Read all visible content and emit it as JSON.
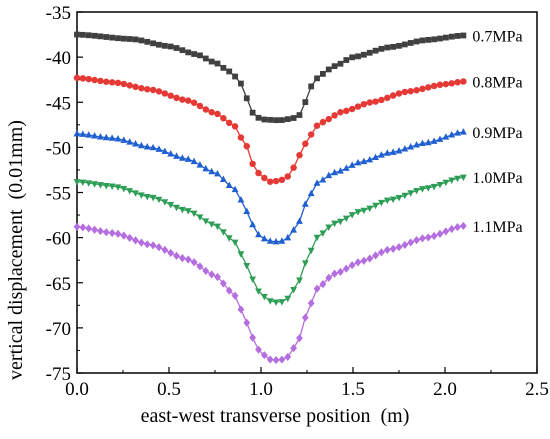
{
  "chart_data": {
    "type": "line",
    "title": "",
    "xlabel": "east-west transverse position  (m)",
    "ylabel": "vertical displacement  (0.01mm)",
    "xlim": [
      0,
      2.5
    ],
    "ylim": [
      -75,
      -35
    ],
    "xticks": [
      0,
      0.5,
      1,
      1.5,
      2,
      2.5
    ],
    "xtick_labels": [
      "0.0",
      "0.5",
      "1.0",
      "1.5",
      "2.0",
      "2.5"
    ],
    "yticks": [
      -35,
      -40,
      -45,
      -50,
      -55,
      -60,
      -65,
      -70,
      -75
    ],
    "ytick_labels": [
      "-35",
      "-40",
      "-45",
      "-50",
      "-55",
      "-60",
      "-65",
      "-70",
      "-75"
    ],
    "grid": false,
    "legend": "inline labels at right end of each curve",
    "x_range_of_series": [
      0,
      2.1
    ],
    "series": [
      {
        "name": "0.7MPa",
        "color": "#404040",
        "marker": "square",
        "keypoints": [
          [
            0,
            -37.5
          ],
          [
            0.3,
            -38.0
          ],
          [
            0.5,
            -38.8
          ],
          [
            0.65,
            -39.7
          ],
          [
            0.75,
            -40.6
          ],
          [
            0.83,
            -41.6
          ],
          [
            0.88,
            -42.5
          ],
          [
            0.92,
            -44.5
          ],
          [
            0.96,
            -46.3
          ],
          [
            1.0,
            -46.9
          ],
          [
            1.1,
            -47.0
          ],
          [
            1.2,
            -46.7
          ],
          [
            1.24,
            -45.0
          ],
          [
            1.28,
            -43.0
          ],
          [
            1.32,
            -42.0
          ],
          [
            1.4,
            -41.0
          ],
          [
            1.5,
            -40.0
          ],
          [
            1.7,
            -38.9
          ],
          [
            1.9,
            -38.1
          ],
          [
            2.1,
            -37.6
          ]
        ]
      },
      {
        "name": "0.8MPa",
        "color": "#e53935",
        "marker": "circle",
        "keypoints": [
          [
            0,
            -42.3
          ],
          [
            0.2,
            -42.8
          ],
          [
            0.4,
            -43.6
          ],
          [
            0.6,
            -44.8
          ],
          [
            0.75,
            -46.2
          ],
          [
            0.85,
            -47.5
          ],
          [
            0.92,
            -49.8
          ],
          [
            0.96,
            -52.0
          ],
          [
            1.0,
            -53.2
          ],
          [
            1.05,
            -53.8
          ],
          [
            1.1,
            -53.7
          ],
          [
            1.15,
            -53.2
          ],
          [
            1.18,
            -52.2
          ],
          [
            1.22,
            -50.5
          ],
          [
            1.26,
            -48.8
          ],
          [
            1.32,
            -47.3
          ],
          [
            1.45,
            -46.0
          ],
          [
            1.6,
            -45.0
          ],
          [
            1.8,
            -43.8
          ],
          [
            2.0,
            -43.0
          ],
          [
            2.1,
            -42.7
          ]
        ]
      },
      {
        "name": "0.9MPa",
        "color": "#1f5fd0",
        "marker": "triangle-up",
        "keypoints": [
          [
            0,
            -48.5
          ],
          [
            0.2,
            -49.0
          ],
          [
            0.4,
            -50.0
          ],
          [
            0.6,
            -51.3
          ],
          [
            0.75,
            -52.8
          ],
          [
            0.85,
            -54.5
          ],
          [
            0.9,
            -56.0
          ],
          [
            0.95,
            -58.5
          ],
          [
            1.0,
            -60.0
          ],
          [
            1.05,
            -60.4
          ],
          [
            1.1,
            -60.5
          ],
          [
            1.15,
            -60.0
          ],
          [
            1.2,
            -58.5
          ],
          [
            1.25,
            -56.0
          ],
          [
            1.3,
            -54.0
          ],
          [
            1.4,
            -52.8
          ],
          [
            1.55,
            -51.6
          ],
          [
            1.7,
            -50.6
          ],
          [
            1.9,
            -49.5
          ],
          [
            2.1,
            -48.3
          ]
        ]
      },
      {
        "name": "1.0MPa",
        "color": "#2e9e57",
        "marker": "triangle-down",
        "keypoints": [
          [
            0,
            -53.8
          ],
          [
            0.2,
            -54.3
          ],
          [
            0.4,
            -55.5
          ],
          [
            0.6,
            -57.0
          ],
          [
            0.75,
            -58.6
          ],
          [
            0.85,
            -60.3
          ],
          [
            0.9,
            -62.0
          ],
          [
            0.95,
            -64.5
          ],
          [
            1.0,
            -66.3
          ],
          [
            1.05,
            -67.0
          ],
          [
            1.1,
            -67.2
          ],
          [
            1.15,
            -66.7
          ],
          [
            1.2,
            -65.0
          ],
          [
            1.25,
            -62.5
          ],
          [
            1.3,
            -60.0
          ],
          [
            1.4,
            -58.4
          ],
          [
            1.55,
            -57.0
          ],
          [
            1.7,
            -55.8
          ],
          [
            1.9,
            -54.5
          ],
          [
            2.1,
            -53.3
          ]
        ]
      },
      {
        "name": "1.1MPa",
        "color": "#b56ee0",
        "marker": "diamond",
        "keypoints": [
          [
            0,
            -58.8
          ],
          [
            0.2,
            -59.5
          ],
          [
            0.4,
            -60.8
          ],
          [
            0.6,
            -62.4
          ],
          [
            0.75,
            -64.2
          ],
          [
            0.85,
            -66.2
          ],
          [
            0.9,
            -68.2
          ],
          [
            0.95,
            -71.0
          ],
          [
            1.0,
            -72.8
          ],
          [
            1.05,
            -73.5
          ],
          [
            1.1,
            -73.6
          ],
          [
            1.15,
            -73.2
          ],
          [
            1.2,
            -71.5
          ],
          [
            1.25,
            -68.5
          ],
          [
            1.3,
            -65.7
          ],
          [
            1.4,
            -64.0
          ],
          [
            1.55,
            -62.6
          ],
          [
            1.7,
            -61.3
          ],
          [
            1.9,
            -60.0
          ],
          [
            2.1,
            -58.7
          ]
        ]
      }
    ]
  }
}
